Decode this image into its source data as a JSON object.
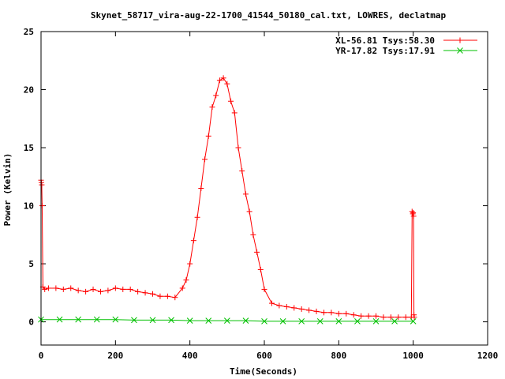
{
  "chart_data": {
    "type": "scatter",
    "title": "Skynet_58717_vira-aug-22-1700_41544_50180_cal.txt, LOWRES, declatmap",
    "xlabel": "Time(Seconds)",
    "ylabel": "Power (Kelvin)",
    "xlim": [
      0,
      1200
    ],
    "ylim": [
      -2,
      25
    ],
    "xticks": [
      "0",
      "200",
      "400",
      "600",
      "800",
      "1000",
      "1200"
    ],
    "xtick_values": [
      0,
      200,
      400,
      600,
      800,
      1000,
      1200
    ],
    "yticks": [
      "0",
      "5",
      "10",
      "15",
      "20",
      "25"
    ],
    "ytick_values": [
      0,
      5,
      10,
      15,
      20,
      25
    ],
    "grid": false,
    "legend_position": "top-right",
    "series": [
      {
        "name": "XL-56.81 Tsys:58.30",
        "color": "#ff0000",
        "marker": "plus",
        "x": [
          0,
          1,
          2,
          3,
          5,
          10,
          20,
          40,
          60,
          80,
          100,
          120,
          140,
          160,
          180,
          200,
          220,
          240,
          260,
          280,
          300,
          320,
          340,
          360,
          380,
          390,
          400,
          410,
          420,
          430,
          440,
          450,
          460,
          470,
          480,
          490,
          500,
          510,
          520,
          530,
          540,
          550,
          560,
          570,
          580,
          590,
          600,
          620,
          640,
          660,
          680,
          700,
          720,
          740,
          760,
          780,
          800,
          820,
          840,
          860,
          880,
          900,
          920,
          940,
          960,
          980,
          995,
          997,
          999,
          1000,
          1001,
          1002,
          1003
        ],
        "y": [
          12.2,
          12.0,
          11.8,
          10.0,
          3.0,
          2.8,
          2.9,
          2.9,
          2.8,
          2.9,
          2.7,
          2.6,
          2.8,
          2.6,
          2.7,
          2.9,
          2.8,
          2.8,
          2.6,
          2.5,
          2.4,
          2.2,
          2.2,
          2.1,
          2.9,
          3.6,
          5.0,
          7.0,
          9.0,
          11.5,
          14.0,
          16.0,
          18.5,
          19.5,
          20.8,
          21.0,
          20.5,
          19.0,
          18.0,
          15.0,
          13.0,
          11.0,
          9.5,
          7.5,
          6.0,
          4.5,
          2.8,
          1.6,
          1.4,
          1.3,
          1.2,
          1.1,
          1.0,
          0.9,
          0.8,
          0.8,
          0.7,
          0.7,
          0.6,
          0.5,
          0.5,
          0.5,
          0.4,
          0.4,
          0.4,
          0.4,
          0.4,
          9.5,
          9.3,
          9.4,
          9.1,
          0.6,
          0.4
        ]
      },
      {
        "name": "YR-17.82 Tsys:17.91",
        "color": "#00c000",
        "marker": "cross",
        "x": [
          0,
          50,
          100,
          150,
          200,
          250,
          300,
          350,
          400,
          450,
          500,
          550,
          600,
          650,
          700,
          750,
          800,
          850,
          900,
          950,
          1000
        ],
        "y": [
          0.2,
          0.2,
          0.2,
          0.2,
          0.2,
          0.15,
          0.15,
          0.15,
          0.1,
          0.1,
          0.1,
          0.1,
          0.05,
          0.05,
          0.05,
          0.05,
          0.05,
          0.05,
          0.05,
          0.05,
          0.05
        ]
      }
    ]
  }
}
